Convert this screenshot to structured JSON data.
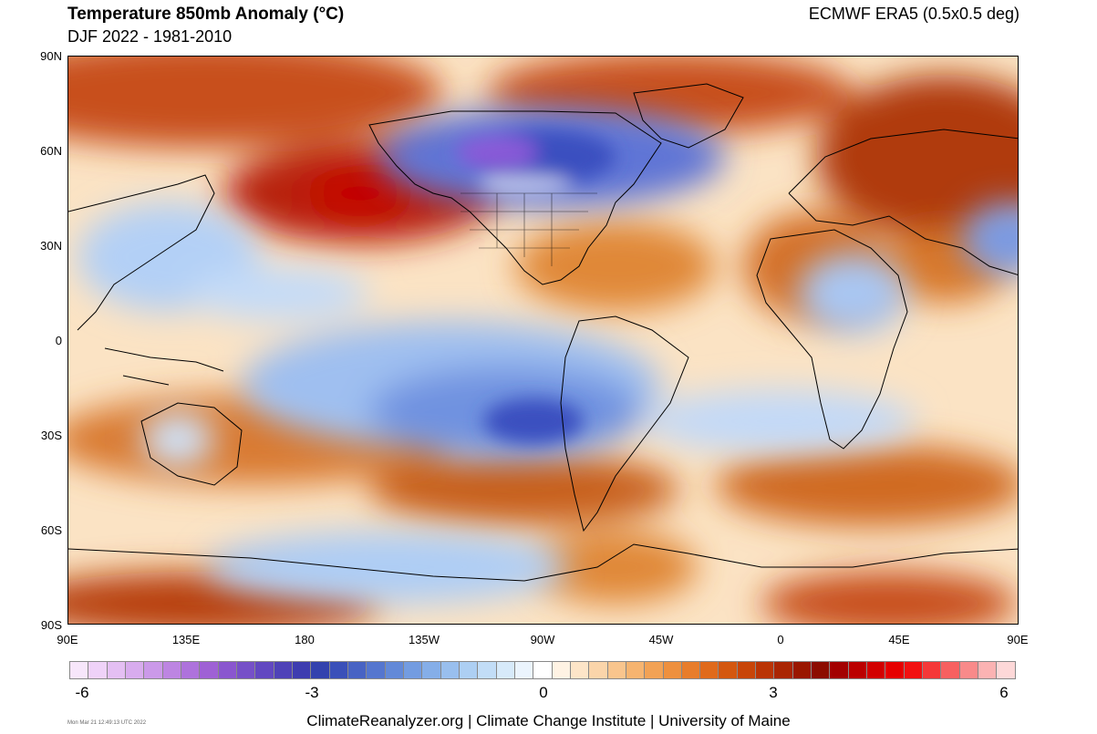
{
  "header": {
    "title": "Temperature 850mb Anomaly (°C)",
    "subtitle": "DJF 2022 - 1981-2010",
    "source": "ECMWF ERA5 (0.5x0.5 deg)"
  },
  "map": {
    "lat_labels": [
      "90N",
      "60N",
      "30N",
      "0",
      "30S",
      "60S",
      "90S"
    ],
    "lon_labels": [
      "90E",
      "135E",
      "180",
      "135W",
      "90W",
      "45W",
      "0",
      "45E",
      "90E"
    ],
    "colors": {
      "strong_warm": "#9b0000",
      "warm": "#d2691e",
      "mild_warm": "#f5b46c",
      "light_warm": "#fbe3c4",
      "neutral": "#ffffff",
      "light_cool": "#cfe3fb",
      "cool": "#7aa6ec",
      "strong_cool": "#3a4fc0",
      "very_cool": "#6a4ad6"
    }
  },
  "colorbar": {
    "labels": [
      "-6",
      "-3",
      "0",
      "3",
      "6"
    ],
    "colors": [
      "#f7e6fb",
      "#efd2f8",
      "#e4bff3",
      "#d8acee",
      "#cb99e9",
      "#bd85e2",
      "#ae72dc",
      "#9f61d5",
      "#8a56cf",
      "#7650c8",
      "#6248c1",
      "#4f42b8",
      "#3e3db0",
      "#3342ae",
      "#3a50b9",
      "#4863c4",
      "#5576cf",
      "#6389d8",
      "#739ce1",
      "#85aee8",
      "#99bfee",
      "#adcff3",
      "#c2ddf7",
      "#d7eafa",
      "#ebf4fd",
      "#ffffff",
      "#fff3e4",
      "#fde5c8",
      "#fbd5aa",
      "#f9c58d",
      "#f6b470",
      "#f2a255",
      "#ee903e",
      "#e87d2b",
      "#e06a1b",
      "#d4570f",
      "#c84508",
      "#ba3404",
      "#aa2502",
      "#9a1700",
      "#8c0c00",
      "#a30000",
      "#bb0000",
      "#d20000",
      "#e60000",
      "#f21010",
      "#f53838",
      "#f76060",
      "#f98a8a",
      "#fbb3b3",
      "#fdd8d8"
    ]
  },
  "footer": {
    "credits": "ClimateReanalyzer.org | Climate Change Institute | University of Maine",
    "timestamp": "Mon Mar 21 12:49:13 UTC 2022"
  }
}
